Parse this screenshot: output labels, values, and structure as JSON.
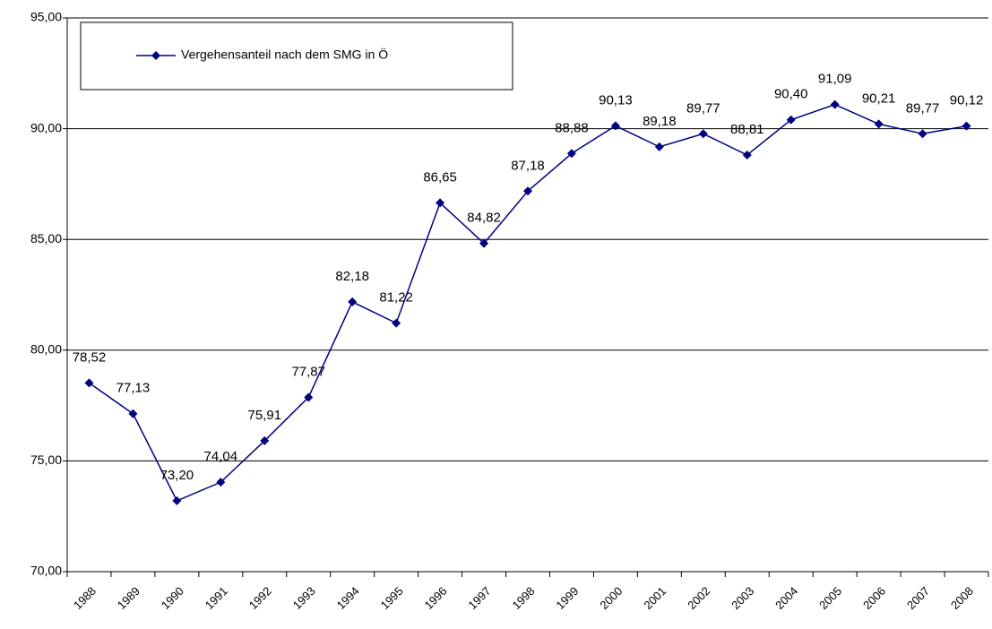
{
  "chart_data": {
    "type": "line",
    "categories": [
      "1988",
      "1989",
      "1990",
      "1991",
      "1992",
      "1993",
      "1994",
      "1995",
      "1996",
      "1997",
      "1998",
      "1999",
      "2000",
      "2001",
      "2002",
      "2003",
      "2004",
      "2005",
      "2006",
      "2007",
      "2008"
    ],
    "series": [
      {
        "name": "Vergehensanteil nach dem SMG in Ö",
        "color": "#000080",
        "values": [
          78.52,
          77.13,
          73.2,
          74.04,
          75.91,
          77.87,
          82.18,
          81.22,
          86.65,
          84.82,
          87.18,
          88.88,
          90.13,
          89.18,
          89.77,
          88.81,
          90.4,
          91.09,
          90.21,
          89.77,
          90.12
        ],
        "value_labels": [
          "78,52",
          "77,13",
          "73,20",
          "74,04",
          "75,91",
          "77,87",
          "82,18",
          "81,22",
          "86,65",
          "84,82",
          "87,18",
          "88,88",
          "90,13",
          "89,18",
          "89,77",
          "88,81",
          "90,40",
          "91,09",
          "90,21",
          "89,77",
          "90,12"
        ]
      }
    ],
    "ylim": [
      70,
      95
    ],
    "yticks": [
      {
        "value": 70,
        "label": "70,00"
      },
      {
        "value": 75,
        "label": "75,00"
      },
      {
        "value": 80,
        "label": "80,00"
      },
      {
        "value": 85,
        "label": "85,00"
      },
      {
        "value": 90,
        "label": "90,00"
      },
      {
        "value": 95,
        "label": "95,00"
      }
    ],
    "grid": true,
    "legend": "top-left"
  }
}
